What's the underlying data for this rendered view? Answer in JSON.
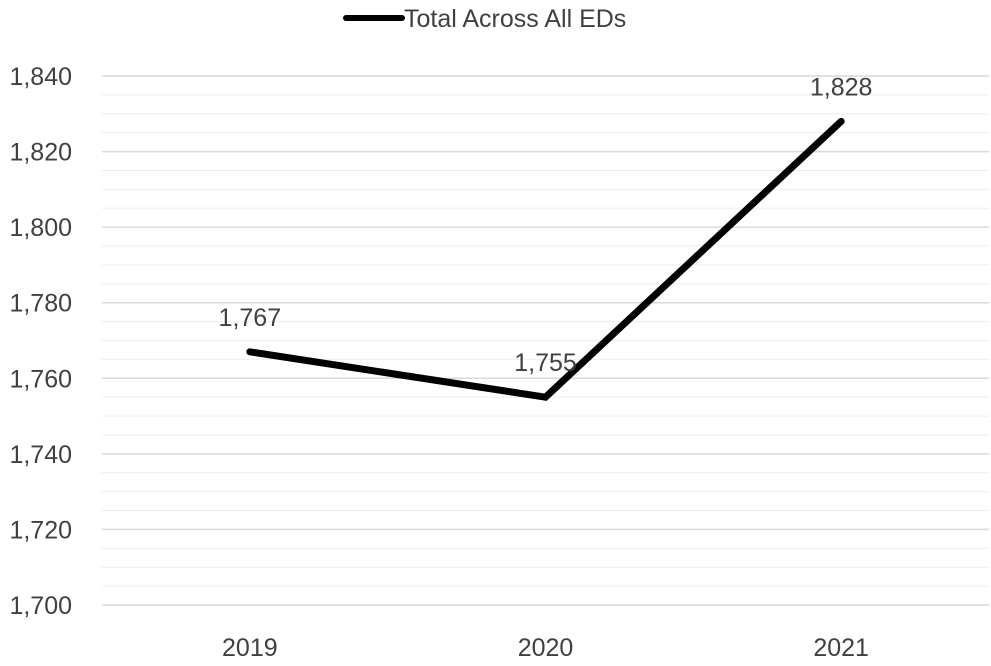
{
  "chart_data": {
    "type": "line",
    "categories": [
      "2019",
      "2020",
      "2021"
    ],
    "series": [
      {
        "name": "Total Across All EDs",
        "values": [
          1767,
          1755,
          1828
        ],
        "color": "#000000"
      }
    ],
    "data_labels": [
      "1,767",
      "1,755",
      "1,828"
    ],
    "yticks": [
      1700,
      1720,
      1740,
      1760,
      1780,
      1800,
      1820,
      1840
    ],
    "ytick_labels": [
      "1,700",
      "1,720",
      "1,740",
      "1,760",
      "1,780",
      "1,800",
      "1,820",
      "1,840"
    ],
    "ylim": [
      1700,
      1840
    ],
    "minor_step": 5,
    "grid": true,
    "legend_position": "top",
    "title": "",
    "xlabel": "",
    "ylabel": ""
  },
  "legend": {
    "label": "Total Across All EDs"
  },
  "colors": {
    "major_grid": "#d9d9d9",
    "minor_grid": "#eeeeee",
    "text": "#404040"
  }
}
